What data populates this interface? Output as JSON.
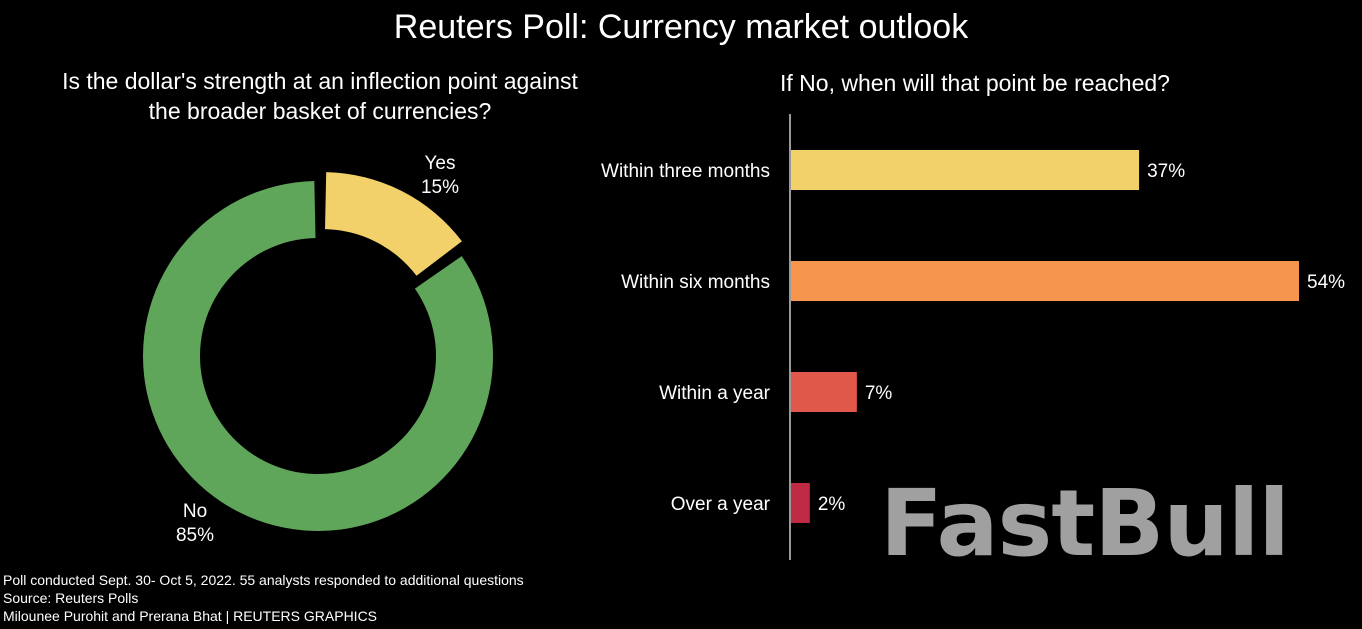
{
  "title": "Reuters Poll: Currency market outlook",
  "left_question": "Is the dollar's strength at an inflection point against the broader basket of currencies?",
  "right_question": "If No, when will that point be reached?",
  "footer": {
    "line1": "Poll conducted Sept. 30- Oct 5, 2022. 55 analysts responded to additional questions",
    "line2": "Source: Reuters Polls",
    "line3": "Milounee Purohit and Prerana Bhat | REUTERS GRAPHICS"
  },
  "watermark": "FastBull",
  "chart_data": [
    {
      "type": "pie",
      "title": "Is the dollar's strength at an inflection point against the broader basket of currencies?",
      "labels": [
        "Yes",
        "No"
      ],
      "values": [
        15,
        85
      ],
      "value_labels": [
        "15%",
        "85%"
      ],
      "colors": [
        "#f2d16b",
        "#5fa55a"
      ],
      "style": "donut"
    },
    {
      "type": "bar",
      "orientation": "horizontal",
      "title": "If No, when will that point be reached?",
      "categories": [
        "Within three months",
        "Within six months",
        "Within a year",
        "Over a year"
      ],
      "values": [
        37,
        54,
        7,
        2
      ],
      "value_labels": [
        "37%",
        "54%",
        "7%",
        "2%"
      ],
      "colors": [
        "#f2d16b",
        "#f6954d",
        "#e0584a",
        "#c02a45"
      ],
      "xlim": [
        0,
        54
      ]
    }
  ]
}
